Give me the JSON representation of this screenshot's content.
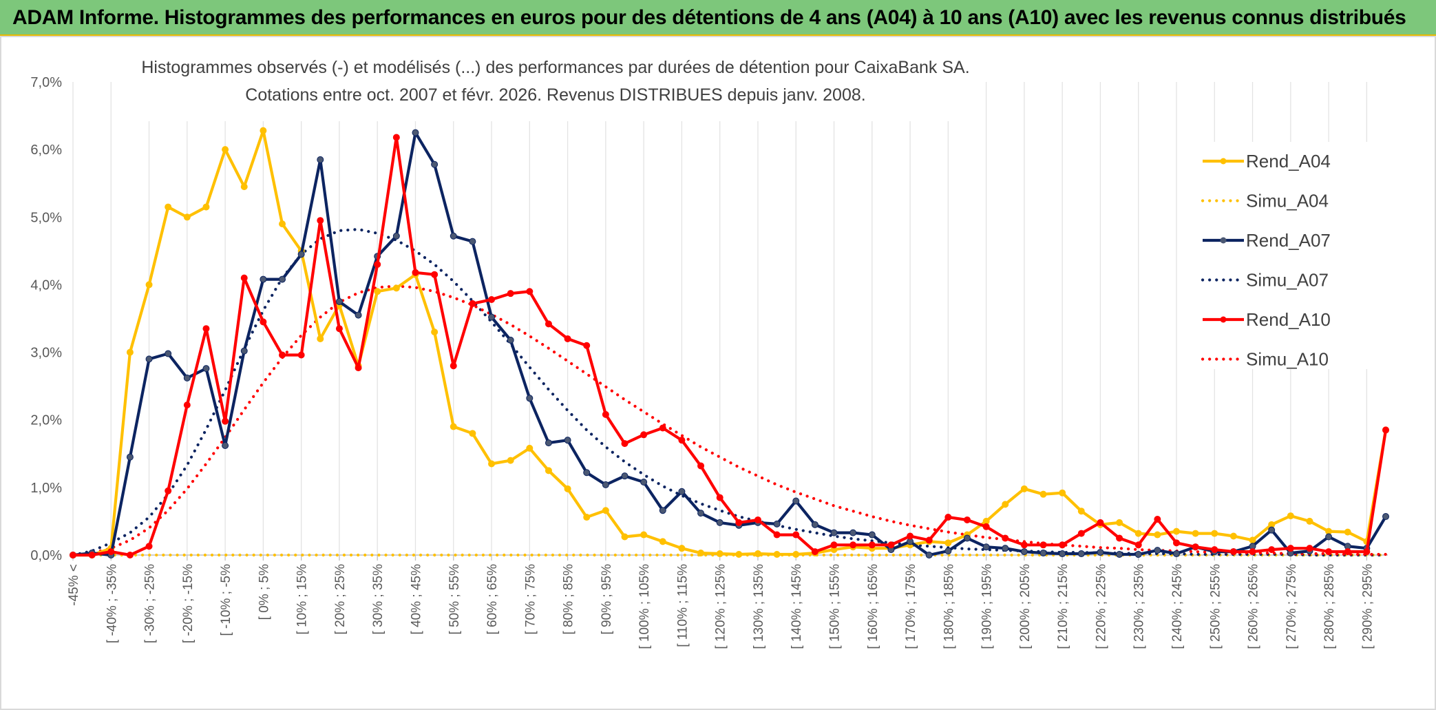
{
  "header": {
    "title": "ADAM Informe. Histogrammes des performances en euros pour des détentions de 4 ans (A04) à 10 ans (A10) avec les revenus connus distribués"
  },
  "chart_data": {
    "type": "line",
    "title_line1": "Histogrammes observés (-) et modélisés (...) des performances par durées de détention pour CaixaBank SA.",
    "title_line2": "Cotations entre oct. 2007 et févr. 2026. Revenus DISTRIBUES depuis janv. 2008.",
    "ylim": [
      0,
      7
    ],
    "y_ticks": [
      "0,0%",
      "1,0%",
      "2,0%",
      "3,0%",
      "4,0%",
      "5,0%",
      "6,0%",
      "7,0%"
    ],
    "grid": "vertical",
    "legend_position": "right",
    "categories": [
      "-45% <",
      "",
      "[ -40% ; -35%",
      "",
      "[ -30% ; -25%",
      "",
      "[ -20% ; -15%",
      "",
      "[ -10% ; -5%",
      "",
      "[ 0% ; 5%",
      "",
      "[ 10% ; 15%",
      "",
      "[ 20% ; 25%",
      "",
      "[ 30% ; 35%",
      "",
      "[ 40% ; 45%",
      "",
      "[ 50% ; 55%",
      "",
      "[ 60% ; 65%",
      "",
      "[ 70% ; 75%",
      "",
      "[ 80% ; 85%",
      "",
      "[ 90% ; 95%",
      "",
      "[ 100% ; 105%",
      "",
      "[ 110% ; 115%",
      "",
      "[ 120% ; 125%",
      "",
      "[ 130% ; 135%",
      "",
      "[ 140% ; 145%",
      "",
      "[ 150% ; 155%",
      "",
      "[ 160% ; 165%",
      "",
      "[ 170% ; 175%",
      "",
      "[ 180% ; 185%",
      "",
      "[ 190% ; 195%",
      "",
      "[ 200% ; 205%",
      "",
      "[ 210% ; 215%",
      "",
      "[ 220% ; 225%",
      "",
      "[ 230% ; 235%",
      "",
      "[ 240% ; 245%",
      "",
      "[ 250% ; 255%",
      "",
      "[ 260% ; 265%",
      "",
      "[ 270% ; 275%",
      "",
      "[ 280% ; 285%",
      "",
      "[ 290% ; 295%",
      ""
    ],
    "series": [
      {
        "name": "Rend_A04",
        "color": "#ffc000",
        "style": "solid",
        "values": [
          0.0,
          0.0,
          0.1,
          3.0,
          4.0,
          5.15,
          5.0,
          5.15,
          6.0,
          5.45,
          6.28,
          4.9,
          4.5,
          3.2,
          3.7,
          2.8,
          3.9,
          3.95,
          4.15,
          3.3,
          1.9,
          1.8,
          1.35,
          1.4,
          1.58,
          1.25,
          0.98,
          0.56,
          0.66,
          0.27,
          0.3,
          0.2,
          0.1,
          0.03,
          0.02,
          0.01,
          0.02,
          0.01,
          0.01,
          0.03,
          0.08,
          0.12,
          0.1,
          0.1,
          0.15,
          0.2,
          0.18,
          0.3,
          0.5,
          0.75,
          0.98,
          0.9,
          0.92,
          0.65,
          0.45,
          0.48,
          0.32,
          0.3,
          0.35,
          0.32,
          0.32,
          0.28,
          0.22,
          0.45,
          0.58,
          0.5,
          0.35,
          0.34,
          0.2,
          1.85
        ]
      },
      {
        "name": "Simu_A04",
        "color": "#ffc000",
        "style": "dotted",
        "values": [
          0.0,
          0.0,
          0.0,
          0.0,
          0.0,
          0.0,
          0.0,
          0.0,
          0.0,
          0.0,
          0.0,
          0.0,
          0.0,
          0.0,
          0.0,
          0.0,
          0.0,
          0.0,
          0.0,
          0.0,
          0.0,
          0.0,
          0.0,
          0.0,
          0.0,
          0.0,
          0.0,
          0.0,
          0.0,
          0.0,
          0.0,
          0.0,
          0.0,
          0.0,
          0.0,
          0.0,
          0.0,
          0.0,
          0.0,
          0.0,
          0.0,
          0.0,
          0.0,
          0.0,
          0.0,
          0.0,
          0.0,
          0.0,
          0.0,
          0.0,
          0.0,
          0.0,
          0.0,
          0.0,
          0.0,
          0.0,
          0.0,
          0.0,
          0.0,
          0.0,
          0.0,
          0.0,
          0.0,
          0.0,
          0.0,
          0.0,
          0.0,
          0.0,
          0.0,
          0.0
        ]
      },
      {
        "name": "Rend_A07",
        "color": "#0c2461",
        "style": "solid",
        "values": [
          0.0,
          0.03,
          0.0,
          1.45,
          2.9,
          2.98,
          2.62,
          2.76,
          1.62,
          3.02,
          4.08,
          4.08,
          4.45,
          5.85,
          3.75,
          3.55,
          4.42,
          4.72,
          6.25,
          5.78,
          4.72,
          4.64,
          3.52,
          3.18,
          2.32,
          1.66,
          1.7,
          1.22,
          1.04,
          1.17,
          1.08,
          0.66,
          0.94,
          0.62,
          0.48,
          0.44,
          0.48,
          0.46,
          0.8,
          0.45,
          0.33,
          0.33,
          0.3,
          0.08,
          0.2,
          0.0,
          0.06,
          0.25,
          0.12,
          0.1,
          0.05,
          0.03,
          0.02,
          0.02,
          0.04,
          0.01,
          0.01,
          0.07,
          0.02,
          0.12,
          0.05,
          0.05,
          0.13,
          0.37,
          0.03,
          0.06,
          0.27,
          0.13,
          0.1,
          0.57
        ]
      },
      {
        "name": "Simu_A07",
        "color": "#0c2461",
        "style": "dotted",
        "values": [
          0.0,
          0.06,
          0.18,
          0.33,
          0.56,
          0.9,
          1.33,
          1.86,
          2.44,
          3.05,
          3.62,
          4.1,
          4.45,
          4.68,
          4.8,
          4.82,
          4.76,
          4.66,
          4.5,
          4.3,
          4.05,
          3.76,
          3.45,
          3.12,
          2.78,
          2.45,
          2.14,
          1.85,
          1.6,
          1.38,
          1.19,
          1.02,
          0.88,
          0.76,
          0.66,
          0.57,
          0.5,
          0.44,
          0.38,
          0.33,
          0.28,
          0.24,
          0.21,
          0.18,
          0.15,
          0.13,
          0.11,
          0.09,
          0.08,
          0.07,
          0.06,
          0.05,
          0.04,
          0.04,
          0.03,
          0.03,
          0.02,
          0.02,
          0.02,
          0.01,
          0.01,
          0.01,
          0.01,
          0.01,
          0.01,
          0.0,
          0.0,
          0.0,
          0.0,
          0.0
        ]
      },
      {
        "name": "Rend_A10",
        "color": "#ff0000",
        "style": "solid",
        "values": [
          0.0,
          0.0,
          0.05,
          0.0,
          0.13,
          0.95,
          2.22,
          3.35,
          1.98,
          4.1,
          3.45,
          2.96,
          2.96,
          4.95,
          3.35,
          2.77,
          4.3,
          6.18,
          4.18,
          4.15,
          2.8,
          3.72,
          3.78,
          3.87,
          3.9,
          3.42,
          3.2,
          3.1,
          2.08,
          1.65,
          1.78,
          1.88,
          1.7,
          1.32,
          0.85,
          0.48,
          0.52,
          0.3,
          0.3,
          0.05,
          0.15,
          0.15,
          0.15,
          0.15,
          0.28,
          0.22,
          0.56,
          0.52,
          0.42,
          0.25,
          0.15,
          0.15,
          0.15,
          0.32,
          0.48,
          0.25,
          0.15,
          0.53,
          0.18,
          0.12,
          0.08,
          0.05,
          0.05,
          0.08,
          0.1,
          0.1,
          0.05,
          0.05,
          0.05,
          1.85
        ]
      },
      {
        "name": "Simu_A10",
        "color": "#ff0000",
        "style": "dotted",
        "values": [
          0.0,
          0.03,
          0.1,
          0.22,
          0.4,
          0.66,
          0.98,
          1.35,
          1.74,
          2.15,
          2.55,
          2.92,
          3.25,
          3.52,
          3.74,
          3.88,
          3.96,
          3.98,
          3.96,
          3.9,
          3.81,
          3.7,
          3.56,
          3.41,
          3.24,
          3.06,
          2.87,
          2.68,
          2.49,
          2.3,
          2.12,
          1.94,
          1.77,
          1.6,
          1.45,
          1.3,
          1.17,
          1.04,
          0.93,
          0.83,
          0.73,
          0.65,
          0.57,
          0.5,
          0.44,
          0.39,
          0.34,
          0.3,
          0.26,
          0.23,
          0.2,
          0.17,
          0.15,
          0.13,
          0.11,
          0.1,
          0.08,
          0.07,
          0.06,
          0.05,
          0.04,
          0.04,
          0.03,
          0.03,
          0.02,
          0.02,
          0.02,
          0.01,
          0.01,
          0.01
        ]
      }
    ]
  }
}
